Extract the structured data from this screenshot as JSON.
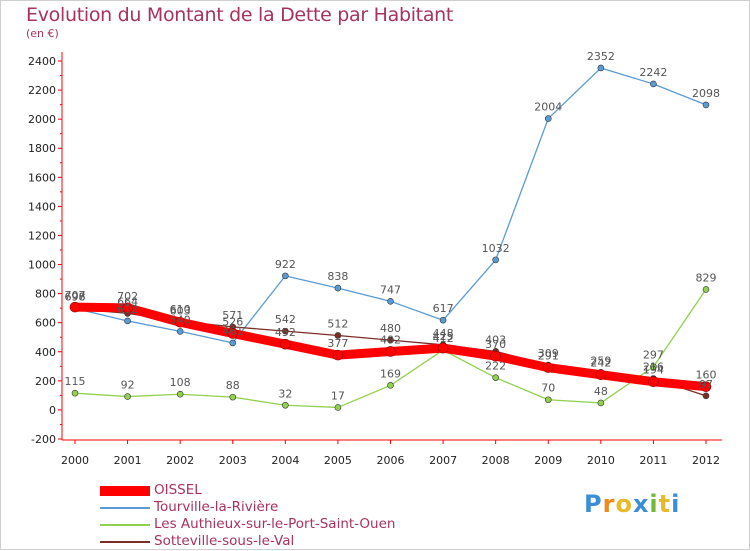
{
  "title": "Evolution du Montant de la Dette par Habitant",
  "subtitle": "(en €)",
  "brand": {
    "letters": [
      "P",
      "r",
      "o",
      "x",
      "i",
      "t",
      "i"
    ],
    "colors": [
      "#3a8fd6",
      "#f08a1c",
      "#e8b92a",
      "#3a8fd6",
      "#6fba3b",
      "#e8b92a",
      "#3a8fd6"
    ]
  },
  "chart_data": {
    "type": "line",
    "title": "Evolution du Montant de la Dette par Habitant",
    "subtitle": "(en €)",
    "x": [
      "2000",
      "2001",
      "2002",
      "2003",
      "2004",
      "2005",
      "2006",
      "2007",
      "2008",
      "2009",
      "2010",
      "2011",
      "2012"
    ],
    "ylim": [
      -200,
      2400
    ],
    "yticks": [
      -200,
      0,
      200,
      400,
      600,
      800,
      1000,
      1200,
      1400,
      1600,
      1800,
      2000,
      2200,
      2400
    ],
    "grid": false,
    "legend_position": "bottom-left",
    "series": [
      {
        "name": "OISSEL",
        "color": "#ff0000",
        "stroke": "thick",
        "values": [
          707,
          702,
          603,
          526,
          452,
          377,
          402,
          425,
          370,
          291,
          242,
          194,
          160
        ]
      },
      {
        "name": "Tourville-la-Rivière",
        "color": "#5b9bd5",
        "stroke": "thin",
        "values": [
          698,
          612,
          540,
          461,
          922,
          838,
          747,
          617,
          1032,
          2004,
          2352,
          2242,
          2098
        ]
      },
      {
        "name": "Les Authieux-sur-le-Port-Saint-Ouen",
        "color": "#92d050",
        "stroke": "thin",
        "values": [
          115,
          92,
          108,
          88,
          32,
          17,
          169,
          412,
          222,
          70,
          48,
          297,
          829
        ]
      },
      {
        "name": "Sotteville-sous-le-Val",
        "color": "#7b2d26",
        "stroke": "thin",
        "values": [
          696,
          664,
          610,
          571,
          542,
          512,
          480,
          448,
          403,
          309,
          259,
          216,
          97
        ]
      }
    ]
  }
}
